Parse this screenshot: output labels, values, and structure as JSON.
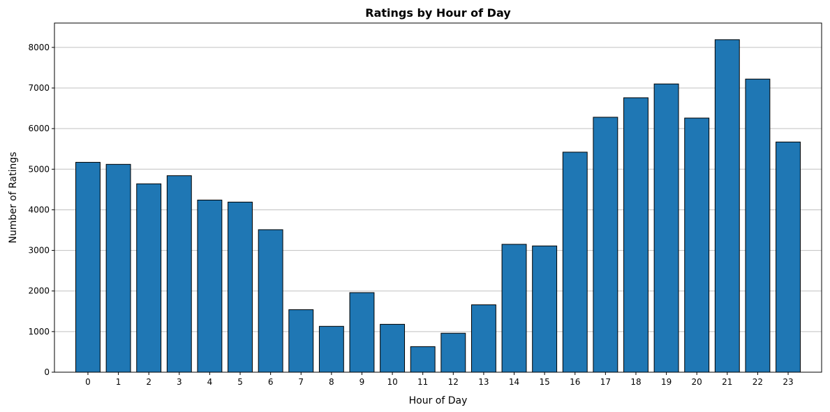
{
  "chart_data": {
    "type": "bar",
    "title": "Ratings by Hour of Day",
    "xlabel": "Hour of Day",
    "ylabel": "Number of Ratings",
    "categories": [
      "0",
      "1",
      "2",
      "3",
      "4",
      "5",
      "6",
      "7",
      "8",
      "9",
      "10",
      "11",
      "12",
      "13",
      "14",
      "15",
      "16",
      "17",
      "18",
      "19",
      "20",
      "21",
      "22",
      "23"
    ],
    "values": [
      5170,
      5120,
      4640,
      4840,
      4240,
      4190,
      3510,
      1540,
      1130,
      1960,
      1180,
      630,
      960,
      1660,
      3150,
      3110,
      5420,
      6280,
      6760,
      7100,
      6260,
      8190,
      7220,
      5670
    ],
    "ylim": [
      0,
      8600
    ],
    "yticks": [
      0,
      1000,
      2000,
      3000,
      4000,
      5000,
      6000,
      7000,
      8000
    ],
    "grid": "y",
    "colors": {
      "bar": "#1f77b4",
      "edge": "#000000",
      "grid": "#c0c0c0"
    }
  }
}
